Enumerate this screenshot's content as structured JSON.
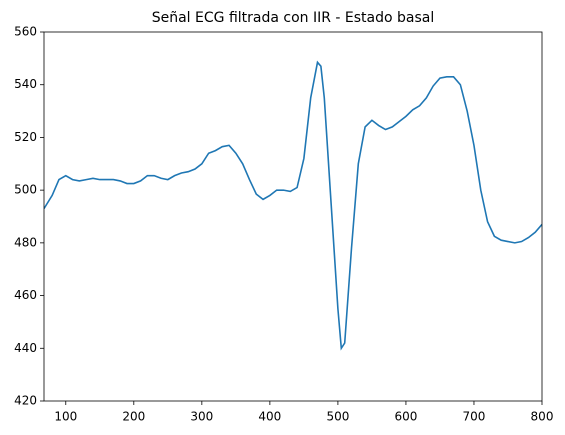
{
  "chart_data": {
    "type": "line",
    "title": "Señal ECG filtrada con IIR - Estado basal",
    "x": [
      68,
      80,
      90,
      100,
      110,
      120,
      130,
      140,
      150,
      160,
      170,
      180,
      190,
      200,
      210,
      220,
      230,
      240,
      250,
      260,
      270,
      280,
      290,
      300,
      310,
      320,
      330,
      340,
      350,
      360,
      370,
      380,
      390,
      400,
      410,
      420,
      430,
      440,
      450,
      460,
      470,
      475,
      480,
      490,
      500,
      505,
      510,
      520,
      530,
      540,
      550,
      560,
      570,
      580,
      590,
      600,
      610,
      620,
      630,
      640,
      650,
      660,
      670,
      680,
      690,
      700,
      710,
      720,
      730,
      740,
      750,
      760,
      770,
      780,
      790,
      800
    ],
    "series": [
      {
        "color": "#1f77b4",
        "values": [
          493,
          498,
          504,
          505.5,
          504,
          503.5,
          504,
          504.5,
          504,
          504,
          504,
          503.5,
          502.5,
          502.5,
          503.5,
          505.5,
          505.5,
          504.5,
          504,
          505.5,
          506.5,
          507,
          508,
          510,
          514,
          515,
          516.5,
          517,
          514,
          510,
          504,
          498.5,
          496.5,
          498,
          500,
          500,
          499.5,
          501,
          512,
          535,
          548.5,
          547,
          535,
          495,
          455,
          440,
          442,
          478,
          510,
          524,
          526.5,
          524.5,
          523,
          524,
          526,
          528,
          530.5,
          532,
          535,
          539.5,
          542.5,
          543,
          543,
          540,
          530,
          517,
          500,
          488,
          482.5,
          481,
          480.5,
          480,
          480.5,
          482,
          484,
          487
        ]
      }
    ],
    "xlim": [
      68,
      800
    ],
    "xticks": [
      100,
      200,
      300,
      400,
      500,
      600,
      700,
      800
    ],
    "ylim": [
      420,
      560
    ],
    "yticks": [
      420,
      440,
      460,
      480,
      500,
      520,
      540,
      560
    ]
  }
}
